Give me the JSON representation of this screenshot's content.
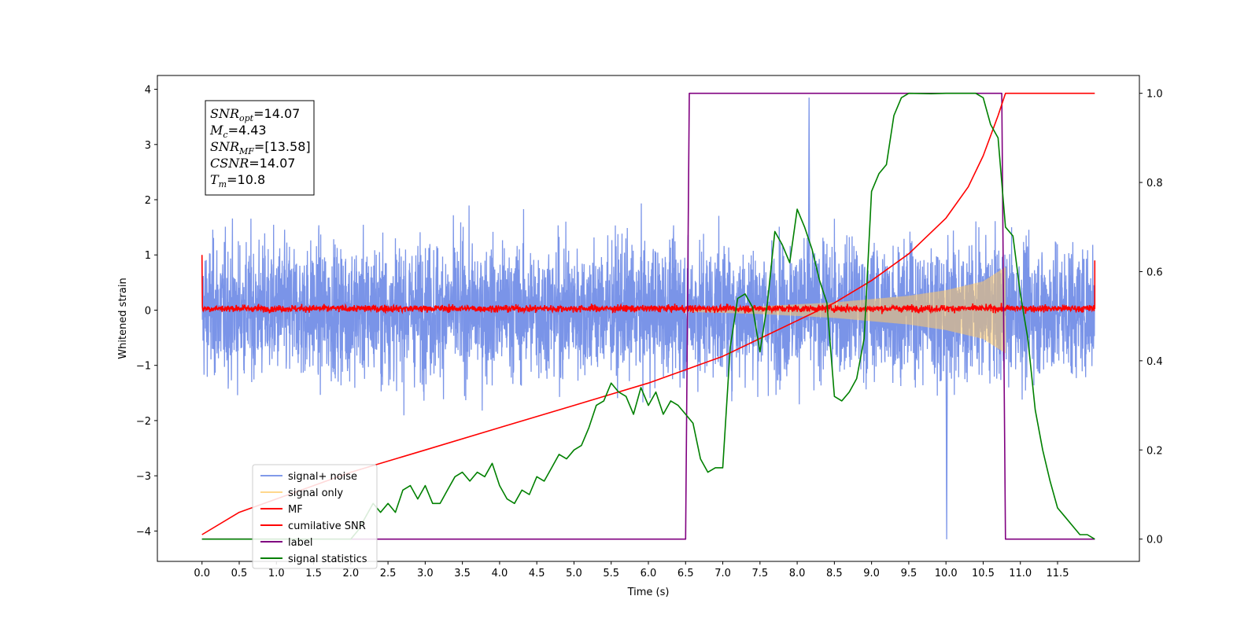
{
  "chart_data": {
    "type": "line",
    "title": "",
    "xlabel": "Time (s)",
    "ylabel": "Whitened strain",
    "xlim": [
      -0.6,
      12.6
    ],
    "ylim": [
      -4.55,
      4.25
    ],
    "y2lim": [
      -0.05,
      1.04
    ],
    "x_ticks": [
      0.0,
      0.5,
      1.0,
      1.5,
      2.0,
      2.5,
      3.0,
      3.5,
      4.0,
      4.5,
      5.0,
      5.5,
      6.0,
      6.5,
      7.0,
      7.5,
      8.0,
      8.5,
      9.0,
      9.5,
      10.0,
      10.5,
      11.0,
      11.5
    ],
    "x_tick_labels": [
      "0.0",
      "0.5",
      "1.0",
      "1.5",
      "2.0",
      "2.5",
      "3.0",
      "3.5",
      "4.0",
      "4.5",
      "5.0",
      "5.5",
      "6.0",
      "6.5",
      "7.0",
      "7.5",
      "8.0",
      "8.5",
      "9.0",
      "9.5",
      "10.0",
      "10.5",
      "11.0",
      "11.5"
    ],
    "y_ticks": [
      4,
      3,
      2,
      1,
      0,
      -1,
      -2,
      -3,
      -4
    ],
    "y_tick_labels": [
      "4",
      "3",
      "2",
      "1",
      "0",
      "−1",
      "−2",
      "−3",
      "−4"
    ],
    "y2_ticks": [
      1.0,
      0.8,
      0.6,
      0.4,
      0.2,
      0.0
    ],
    "y2_tick_labels": [
      "1.0",
      "0.8",
      "0.6",
      "0.4",
      "0.2",
      "0.0"
    ],
    "grid": false,
    "legend_placement": "lower-left",
    "series": [
      {
        "name": "signal+ noise",
        "color": "#6b88e6",
        "axis": "left",
        "x_range": [
          0.0,
          12.0
        ],
        "amplitude_band": [
          -2.3,
          2.3
        ],
        "peak_values": [
          3.85,
          -4.15
        ]
      },
      {
        "name": "signal only",
        "color": "#ffc966",
        "axis": "left",
        "x_range": [
          6.5,
          10.8
        ],
        "envelope": {
          "x": [
            6.5,
            7.5,
            8.5,
            9.5,
            10.0,
            10.5,
            10.8
          ],
          "amplitude": [
            0.03,
            0.07,
            0.14,
            0.26,
            0.36,
            0.52,
            0.78
          ]
        }
      },
      {
        "name": "MF",
        "color": "#ff0000",
        "axis": "left",
        "x_range": [
          0.0,
          12.0
        ],
        "amplitude_band": [
          -0.12,
          0.18
        ],
        "edge_values": [
          1.0,
          0.9
        ]
      },
      {
        "name": "cumilative SNR",
        "color": "#ff0000",
        "axis": "right",
        "x": [
          0.0,
          0.5,
          1.0,
          2.0,
          3.0,
          4.0,
          5.0,
          6.0,
          6.5,
          7.0,
          7.5,
          8.0,
          8.5,
          9.0,
          9.5,
          10.0,
          10.3,
          10.5,
          10.7,
          10.8,
          12.0
        ],
        "y": [
          0.01,
          0.06,
          0.09,
          0.15,
          0.2,
          0.25,
          0.3,
          0.35,
          0.38,
          0.41,
          0.45,
          0.49,
          0.53,
          0.58,
          0.64,
          0.72,
          0.79,
          0.86,
          0.95,
          1.0,
          1.0
        ]
      },
      {
        "name": "label",
        "color": "#800080",
        "axis": "right",
        "x": [
          0.0,
          6.5,
          6.55,
          10.75,
          10.8,
          12.0
        ],
        "y": [
          0.0,
          0.0,
          1.0,
          1.0,
          0.0,
          0.0
        ]
      },
      {
        "name": "signal statistics",
        "color": "#008000",
        "axis": "right",
        "x": [
          0.0,
          1.0,
          1.5,
          2.0,
          2.1,
          2.2,
          2.3,
          2.4,
          2.5,
          2.6,
          2.7,
          2.8,
          2.9,
          3.0,
          3.1,
          3.2,
          3.3,
          3.4,
          3.5,
          3.6,
          3.7,
          3.8,
          3.9,
          4.0,
          4.1,
          4.2,
          4.3,
          4.4,
          4.5,
          4.6,
          4.7,
          4.8,
          4.9,
          5.0,
          5.1,
          5.2,
          5.3,
          5.4,
          5.5,
          5.6,
          5.7,
          5.8,
          5.9,
          6.0,
          6.1,
          6.2,
          6.3,
          6.4,
          6.5,
          6.6,
          6.7,
          6.8,
          6.9,
          7.0,
          7.1,
          7.2,
          7.3,
          7.4,
          7.5,
          7.6,
          7.7,
          7.8,
          7.9,
          8.0,
          8.1,
          8.2,
          8.3,
          8.4,
          8.5,
          8.6,
          8.7,
          8.8,
          8.9,
          9.0,
          9.1,
          9.2,
          9.3,
          9.4,
          9.5,
          9.8,
          10.0,
          10.2,
          10.4,
          10.5,
          10.6,
          10.7,
          10.8,
          10.9,
          11.0,
          11.1,
          11.2,
          11.3,
          11.4,
          11.5,
          11.6,
          11.7,
          11.8,
          11.9,
          12.0
        ],
        "y": [
          0.0,
          0.0,
          0.0,
          0.0,
          0.02,
          0.05,
          0.08,
          0.06,
          0.08,
          0.06,
          0.11,
          0.12,
          0.09,
          0.12,
          0.08,
          0.08,
          0.11,
          0.14,
          0.15,
          0.13,
          0.15,
          0.14,
          0.17,
          0.12,
          0.09,
          0.08,
          0.11,
          0.1,
          0.14,
          0.13,
          0.16,
          0.19,
          0.18,
          0.2,
          0.21,
          0.25,
          0.3,
          0.31,
          0.35,
          0.33,
          0.32,
          0.28,
          0.34,
          0.3,
          0.33,
          0.28,
          0.31,
          0.3,
          0.28,
          0.26,
          0.18,
          0.15,
          0.16,
          0.16,
          0.43,
          0.54,
          0.55,
          0.52,
          0.42,
          0.53,
          0.69,
          0.66,
          0.62,
          0.74,
          0.7,
          0.65,
          0.58,
          0.53,
          0.32,
          0.31,
          0.33,
          0.36,
          0.45,
          0.78,
          0.82,
          0.84,
          0.95,
          0.99,
          1.0,
          0.999,
          1.0,
          1.0,
          1.0,
          0.99,
          0.93,
          0.9,
          0.7,
          0.68,
          0.55,
          0.45,
          0.29,
          0.2,
          0.13,
          0.07,
          0.05,
          0.03,
          0.01,
          0.01,
          0.0
        ]
      }
    ],
    "legend": [
      "signal+ noise",
      "signal only",
      "MF",
      "cumilative SNR",
      "label",
      "signal statistics"
    ],
    "annotation": {
      "lines": [
        {
          "base": "SNR",
          "sub": "opt",
          "value": "=14.07"
        },
        {
          "base": "M",
          "sub": "c",
          "value": "=4.43"
        },
        {
          "base": "SNR",
          "sub": "MF",
          "value": "=[13.58]"
        },
        {
          "base": "CSNR",
          "sub": "",
          "value": "=14.07"
        },
        {
          "base": "T",
          "sub": "m",
          "value": "=10.8"
        }
      ]
    }
  }
}
